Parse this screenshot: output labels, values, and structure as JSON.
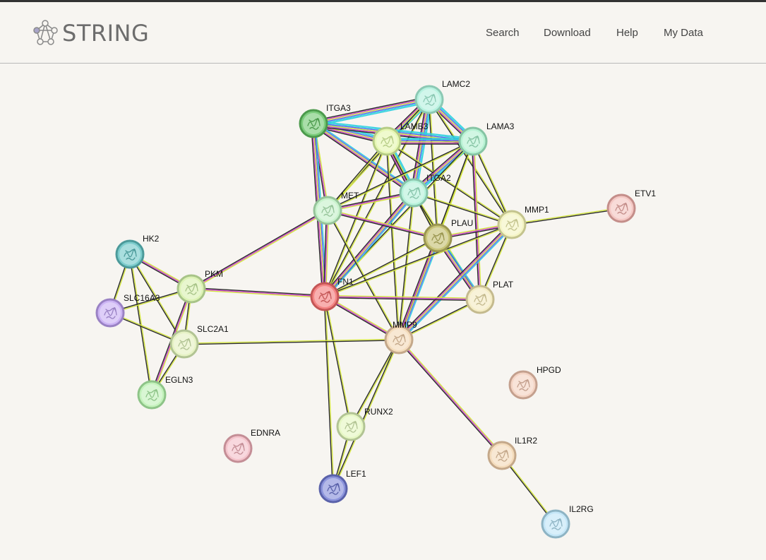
{
  "header": {
    "logo_text": "STRING",
    "nav": [
      {
        "label": "Search"
      },
      {
        "label": "Download"
      },
      {
        "label": "Help"
      },
      {
        "label": "My Data"
      }
    ]
  },
  "network": {
    "nodes": [
      {
        "id": "LAMC2",
        "label": "LAMC2",
        "color": "#b8f2e0",
        "ring": "#8cc9b4"
      },
      {
        "id": "ITGA3",
        "label": "ITGA3",
        "color": "#7ccc7c",
        "ring": "#4c9a4c"
      },
      {
        "id": "LAMB3",
        "label": "LAMB3",
        "color": "#e6f7b4",
        "ring": "#b6cc86"
      },
      {
        "id": "LAMA3",
        "label": "LAMA3",
        "color": "#b8f2d4",
        "ring": "#86c4a4"
      },
      {
        "id": "ITGA2",
        "label": "ITGA2",
        "color": "#b8f2dc",
        "ring": "#86c4aa"
      },
      {
        "id": "MET",
        "label": "MET",
        "color": "#c8f2cc",
        "ring": "#96c49a"
      },
      {
        "id": "PLAU",
        "label": "PLAU",
        "color": "#c8c478",
        "ring": "#9a9650"
      },
      {
        "id": "MMP1",
        "label": "MMP1",
        "color": "#f4f4c4",
        "ring": "#c4c48e"
      },
      {
        "id": "ETV1",
        "label": "ETV1",
        "color": "#f4c8c4",
        "ring": "#c48e8a"
      },
      {
        "id": "HK2",
        "label": "HK2",
        "color": "#7ccccc",
        "ring": "#4c9a9a"
      },
      {
        "id": "PKM",
        "label": "PKM",
        "color": "#dcf2b4",
        "ring": "#a8c488"
      },
      {
        "id": "FN1",
        "label": "FN1",
        "color": "#f48484",
        "ring": "#c45656"
      },
      {
        "id": "PLAT",
        "label": "PLAT",
        "color": "#f4ecc4",
        "ring": "#c4ba8e"
      },
      {
        "id": "SLC16A3",
        "label": "SLC16A3",
        "color": "#ccb4f4",
        "ring": "#9a82c4"
      },
      {
        "id": "SLC2A1",
        "label": "SLC2A1",
        "color": "#e6f2c4",
        "ring": "#b2c494"
      },
      {
        "id": "MMP9",
        "label": "MMP9",
        "color": "#f4dcbc",
        "ring": "#c4a88a"
      },
      {
        "id": "HPGD",
        "label": "HPGD",
        "color": "#f4d4c4",
        "ring": "#c4a08e"
      },
      {
        "id": "EGLN3",
        "label": "EGLN3",
        "color": "#c4f2bc",
        "ring": "#8ec488"
      },
      {
        "id": "RUNX2",
        "label": "RUNX2",
        "color": "#e6f7c4",
        "ring": "#b2c494"
      },
      {
        "id": "EDNRA",
        "label": "EDNRA",
        "color": "#f4c4cc",
        "ring": "#c48e96"
      },
      {
        "id": "IL1R2",
        "label": "IL1R2",
        "color": "#f4dcbc",
        "ring": "#c4a88a"
      },
      {
        "id": "LEF1",
        "label": "LEF1",
        "color": "#8c94dc",
        "ring": "#5a62aa"
      },
      {
        "id": "IL2RG",
        "label": "IL2RG",
        "color": "#c4e6f7",
        "ring": "#8eb4c4"
      }
    ],
    "edges": [
      [
        "LAMC2",
        "ITGA3",
        "ccbgmy"
      ],
      [
        "LAMC2",
        "LAMB3",
        "ccbgmy"
      ],
      [
        "LAMC2",
        "LAMA3",
        "ccbgmy"
      ],
      [
        "LAMC2",
        "ITGA2",
        "ccbgmy"
      ],
      [
        "LAMC2",
        "MET",
        "gy"
      ],
      [
        "LAMC2",
        "PLAU",
        "gy"
      ],
      [
        "LAMC2",
        "MMP1",
        "gy"
      ],
      [
        "LAMC2",
        "FN1",
        "gy"
      ],
      [
        "ITGA3",
        "LAMB3",
        "ccbgmy"
      ],
      [
        "ITGA3",
        "LAMA3",
        "ccbgmy"
      ],
      [
        "ITGA3",
        "ITGA2",
        "cbgmy"
      ],
      [
        "ITGA3",
        "MET",
        "gmy"
      ],
      [
        "ITGA3",
        "FN1",
        "cbgmy"
      ],
      [
        "LAMB3",
        "LAMA3",
        "ccbgmy"
      ],
      [
        "LAMB3",
        "ITGA2",
        "ccbgmy"
      ],
      [
        "LAMB3",
        "MET",
        "gy"
      ],
      [
        "LAMB3",
        "PLAU",
        "gy"
      ],
      [
        "LAMB3",
        "MMP1",
        "gy"
      ],
      [
        "LAMB3",
        "FN1",
        "gy"
      ],
      [
        "LAMB3",
        "MMP9",
        "gy"
      ],
      [
        "LAMA3",
        "ITGA2",
        "ccbgmy"
      ],
      [
        "LAMA3",
        "MET",
        "gy"
      ],
      [
        "LAMA3",
        "PLAU",
        "gy"
      ],
      [
        "LAMA3",
        "MMP1",
        "gy"
      ],
      [
        "LAMA3",
        "FN1",
        "gy"
      ],
      [
        "LAMA3",
        "PLAT",
        "gmy"
      ],
      [
        "LAMA3",
        "MMP9",
        "gy"
      ],
      [
        "ITGA2",
        "MET",
        "gmy"
      ],
      [
        "ITGA2",
        "PLAU",
        "gy"
      ],
      [
        "ITGA2",
        "MMP1",
        "gy"
      ],
      [
        "ITGA2",
        "FN1",
        "cbgmy"
      ],
      [
        "ITGA2",
        "PLAT",
        "gy"
      ],
      [
        "ITGA2",
        "MMP9",
        "gy"
      ],
      [
        "MET",
        "PLAU",
        "gmy"
      ],
      [
        "MET",
        "FN1",
        "gmy"
      ],
      [
        "MET",
        "PKM",
        "gmy"
      ],
      [
        "MET",
        "MMP9",
        "gy"
      ],
      [
        "PLAU",
        "MMP1",
        "gmy"
      ],
      [
        "PLAU",
        "FN1",
        "gy"
      ],
      [
        "PLAU",
        "PLAT",
        "cbgmy"
      ],
      [
        "PLAU",
        "MMP9",
        "cbgmy"
      ],
      [
        "MMP1",
        "FN1",
        "gy"
      ],
      [
        "MMP1",
        "PLAT",
        "gy"
      ],
      [
        "MMP1",
        "MMP9",
        "cbgmy"
      ],
      [
        "MMP1",
        "ETV1",
        "gy"
      ],
      [
        "FN1",
        "PLAT",
        "gmy"
      ],
      [
        "FN1",
        "MMP9",
        "gmy"
      ],
      [
        "FN1",
        "PKM",
        "gmy"
      ],
      [
        "FN1",
        "RUNX2",
        "gy"
      ],
      [
        "FN1",
        "LEF1",
        "gy"
      ],
      [
        "PLAT",
        "MMP9",
        "gy"
      ],
      [
        "HK2",
        "PKM",
        "gmy"
      ],
      [
        "HK2",
        "SLC16A3",
        "gy"
      ],
      [
        "HK2",
        "SLC2A1",
        "gy"
      ],
      [
        "HK2",
        "EGLN3",
        "gy"
      ],
      [
        "PKM",
        "SLC16A3",
        "gy"
      ],
      [
        "PKM",
        "SLC2A1",
        "gy"
      ],
      [
        "PKM",
        "EGLN3",
        "gmy"
      ],
      [
        "SLC16A3",
        "SLC2A1",
        "gy"
      ],
      [
        "SLC2A1",
        "EGLN3",
        "gy"
      ],
      [
        "SLC2A1",
        "MMP9",
        "gy"
      ],
      [
        "MMP9",
        "RUNX2",
        "gy"
      ],
      [
        "MMP9",
        "IL1R2",
        "gmy"
      ],
      [
        "MMP9",
        "LEF1",
        "gy"
      ],
      [
        "RUNX2",
        "LEF1",
        "gy"
      ],
      [
        "IL1R2",
        "IL2RG",
        "gy"
      ]
    ]
  }
}
